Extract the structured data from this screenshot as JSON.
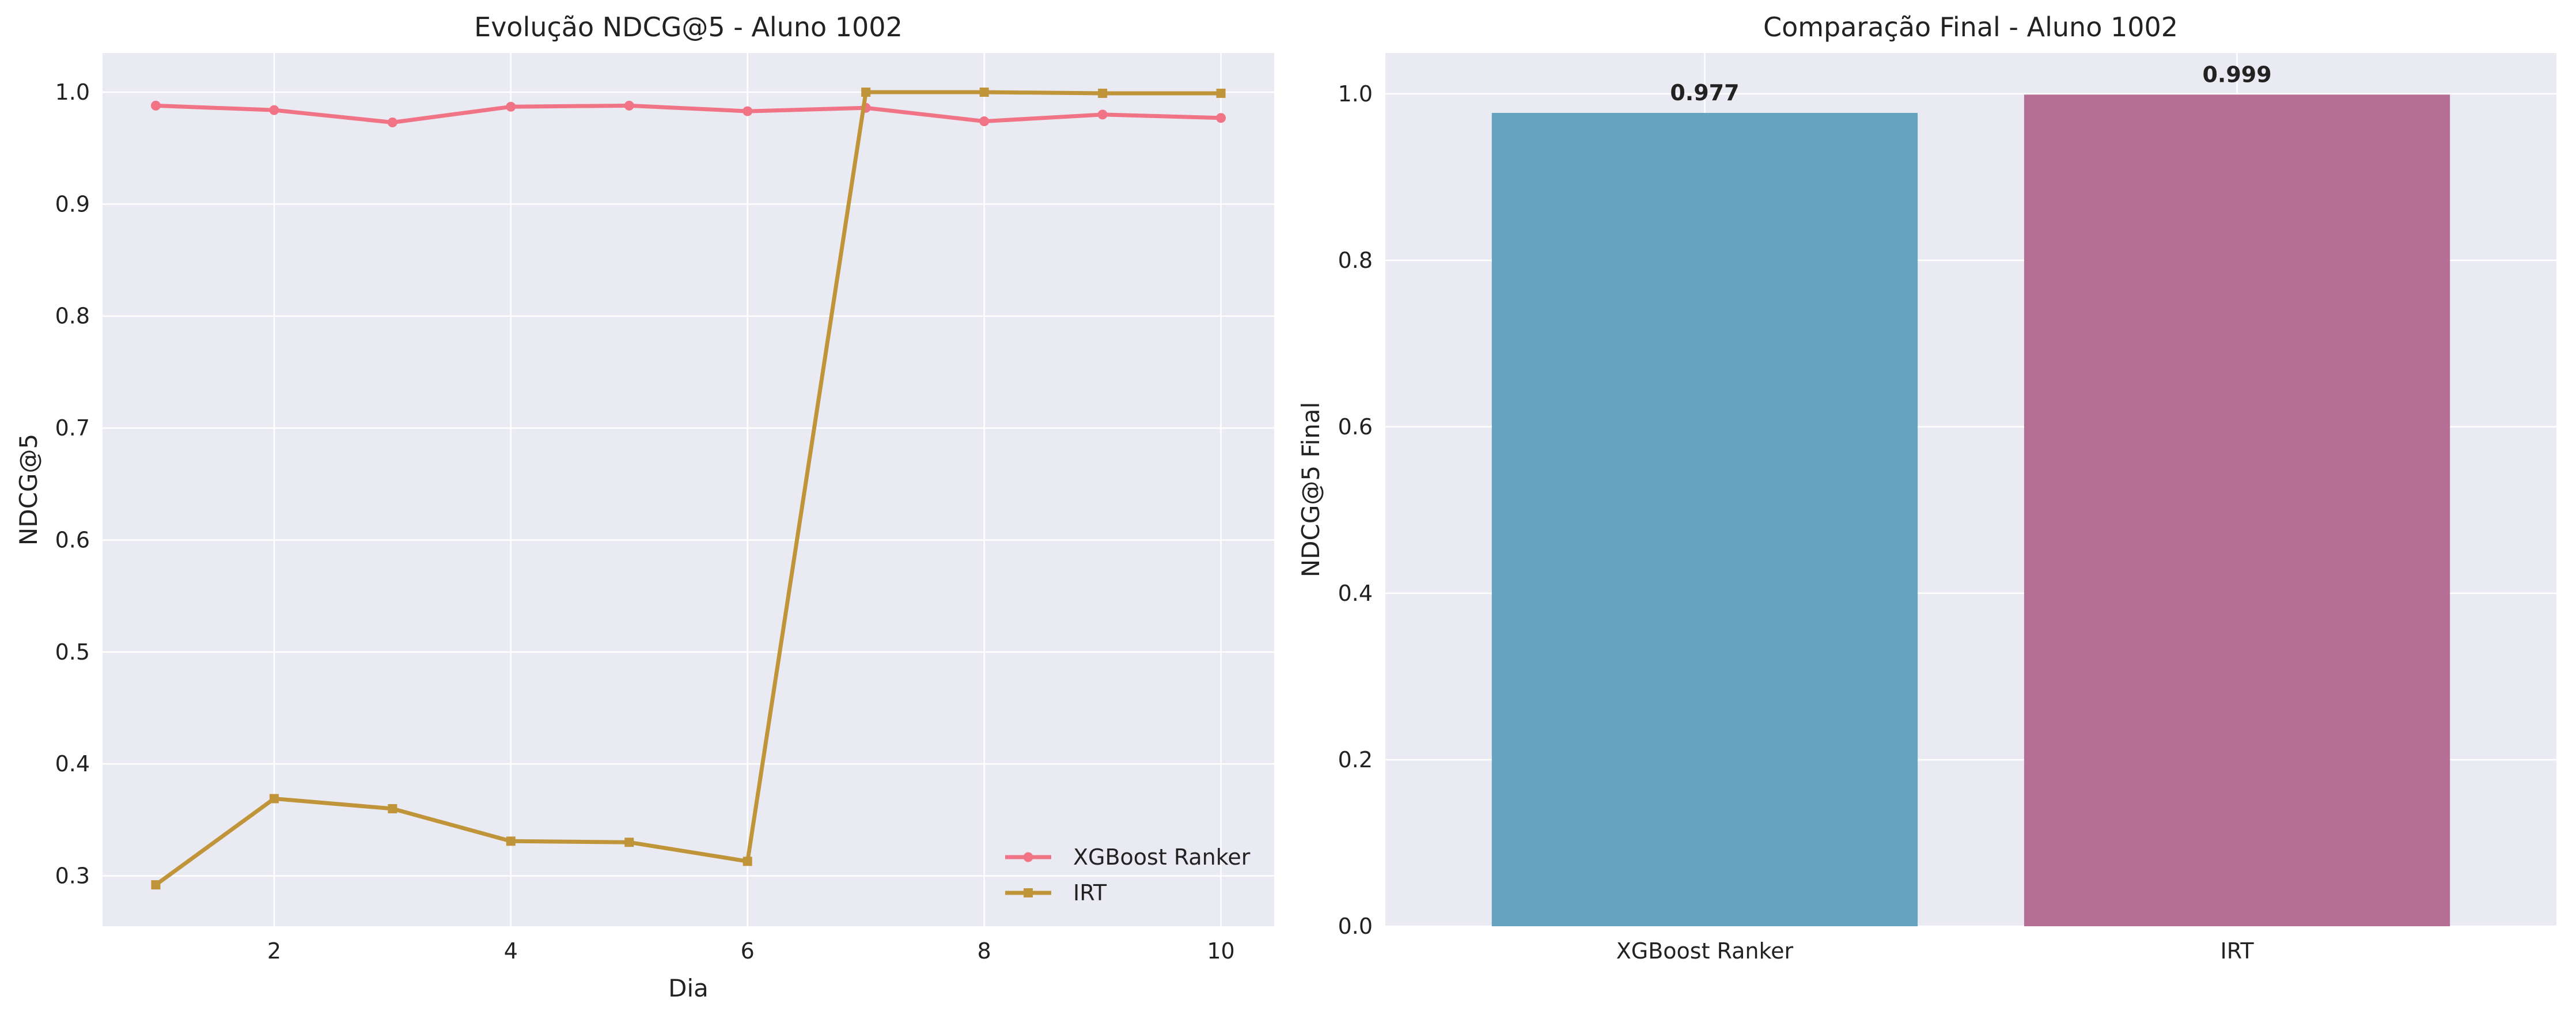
{
  "chart_data": [
    {
      "type": "line",
      "title": "Evolução NDCG@5 - Aluno 1002",
      "xlabel": "Dia",
      "ylabel": "NDCG@5",
      "x": [
        1,
        2,
        3,
        4,
        5,
        6,
        7,
        8,
        9,
        10
      ],
      "xticks": [
        2,
        4,
        6,
        8,
        10
      ],
      "yticks": [
        0.3,
        0.4,
        0.5,
        0.6,
        0.7,
        0.8,
        0.9,
        1.0
      ],
      "xlim": [
        0.55,
        10.45
      ],
      "ylim": [
        0.255,
        1.035
      ],
      "grid": true,
      "legend_position": "lower-right",
      "series": [
        {
          "name": "XGBoost Ranker",
          "color": "#f07486",
          "marker": "circle",
          "values": [
            0.988,
            0.984,
            0.973,
            0.987,
            0.988,
            0.983,
            0.986,
            0.974,
            0.98,
            0.977
          ]
        },
        {
          "name": "IRT",
          "color": "#c0953a",
          "marker": "square",
          "values": [
            0.292,
            0.369,
            0.36,
            0.331,
            0.33,
            0.313,
            1.0,
            1.0,
            0.999,
            0.999
          ]
        }
      ]
    },
    {
      "type": "bar",
      "title": "Comparação Final - Aluno 1002",
      "xlabel": "",
      "ylabel": "NDCG@5 Final",
      "categories": [
        "XGBoost Ranker",
        "IRT"
      ],
      "values": [
        0.977,
        0.999
      ],
      "value_labels": [
        "0.977",
        "0.999"
      ],
      "colors": [
        "#64a2c0",
        "#b66f94"
      ],
      "yticks": [
        0.0,
        0.2,
        0.4,
        0.6,
        0.8,
        1.0
      ],
      "ylim": [
        0,
        1.049
      ],
      "grid": true
    }
  ]
}
